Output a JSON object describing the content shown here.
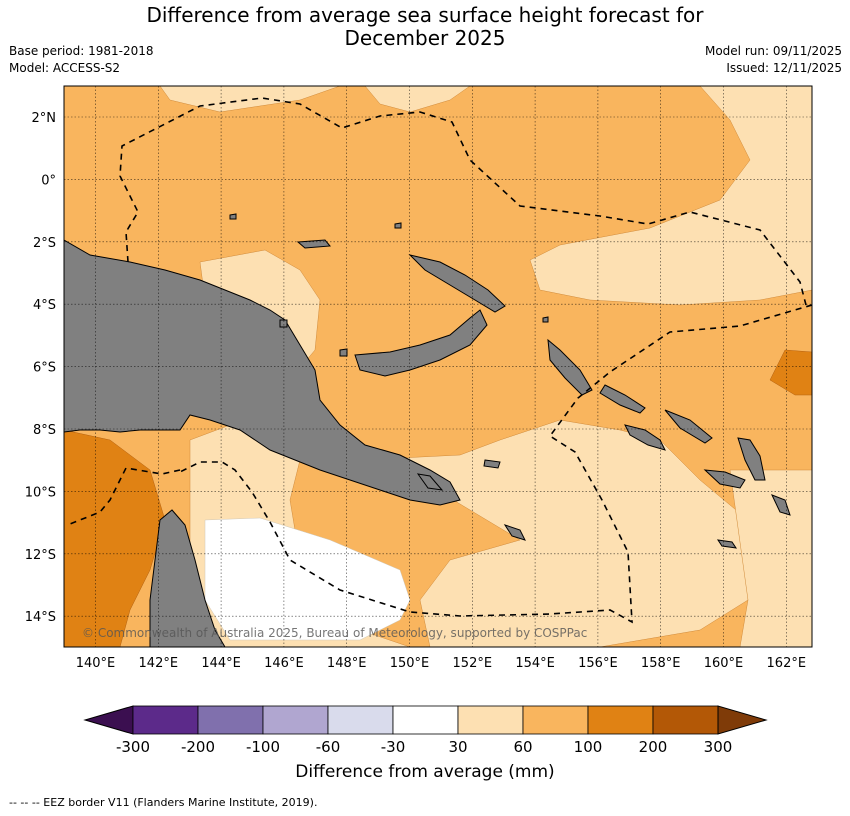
{
  "title_line1": "Difference from average sea surface height forecast for",
  "title_line2": "December 2025",
  "meta_left": [
    "Base period: 1981-2018",
    "Model: ACCESS-S2"
  ],
  "meta_right": [
    "Model run: 09/11/2025",
    "Issued: 12/11/2025"
  ],
  "copyright": "© Commonwealth of Australia 2025, Bureau of Meteorology, supported by COSPPac",
  "lat_labels": [
    "2°N",
    "0°",
    "2°S",
    "4°S",
    "6°S",
    "8°S",
    "10°S",
    "12°S",
    "14°S"
  ],
  "lon_labels": [
    "140°E",
    "142°E",
    "144°E",
    "146°E",
    "148°E",
    "150°E",
    "152°E",
    "154°E",
    "156°E",
    "158°E",
    "160°E",
    "162°E"
  ],
  "colorbar": {
    "label": "Difference from average (mm)",
    "ticks": [
      "-300",
      "-200",
      "-100",
      "-60",
      "-30",
      "30",
      "60",
      "100",
      "200",
      "300"
    ],
    "colors": [
      "#3b0f50",
      "#5c2a8a",
      "#8070ad",
      "#b0a6d0",
      "#d9dbec",
      "#ffffff",
      "#fde0b2",
      "#f9b55e",
      "#e08214",
      "#b35806",
      "#7f3b08"
    ]
  },
  "legend_note": "--  --  -- EEZ border V11 (Flanders Marine Institute, 2019).",
  "colors": {
    "land": "#808080",
    "ocean_base": "#f9b55e"
  }
}
